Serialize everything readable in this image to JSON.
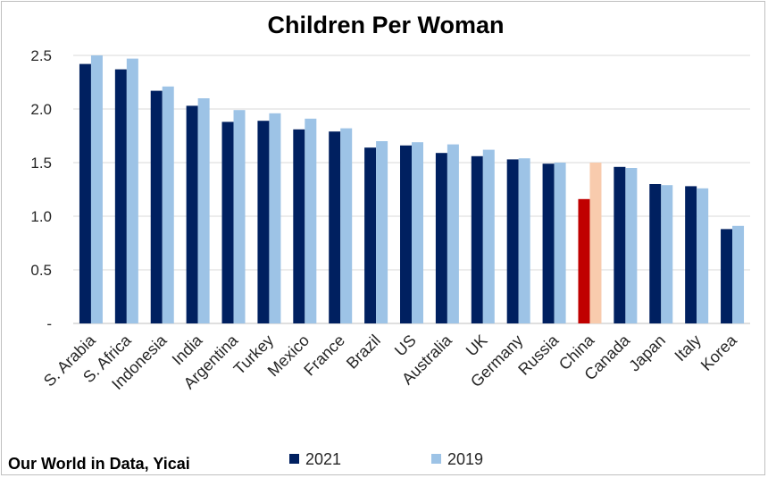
{
  "chart_data": {
    "type": "bar",
    "title": "Children Per Woman",
    "source": "Our World in Data, Yicai",
    "categories": [
      "S. Arabia",
      "S. Africa",
      "Indonesia",
      "India",
      "Argentina",
      "Turkey",
      "Mexico",
      "France",
      "Brazil",
      "US",
      "Australia",
      "UK",
      "Germany",
      "Russia",
      "China",
      "Canada",
      "Japan",
      "Italy",
      "Korea"
    ],
    "series": [
      {
        "name": "2021",
        "color": "#002060",
        "values": [
          2.42,
          2.37,
          2.17,
          2.03,
          1.88,
          1.89,
          1.81,
          1.79,
          1.64,
          1.66,
          1.59,
          1.56,
          1.53,
          1.49,
          1.16,
          1.46,
          1.3,
          1.28,
          0.88
        ]
      },
      {
        "name": "2019",
        "color": "#9dc3e6",
        "values": [
          2.5,
          2.47,
          2.21,
          2.1,
          1.99,
          1.96,
          1.91,
          1.82,
          1.7,
          1.69,
          1.67,
          1.62,
          1.54,
          1.5,
          1.5,
          1.45,
          1.29,
          1.26,
          0.91
        ]
      }
    ],
    "highlight": {
      "category": "China",
      "colors": {
        "2021": "#c00000",
        "2019": "#f8cbad"
      }
    },
    "yticks": [
      "-",
      "0.5",
      "1.0",
      "1.5",
      "2.0",
      "2.5"
    ],
    "ylim": [
      0,
      2.5
    ],
    "xlabel": "",
    "ylabel": "",
    "grid": true,
    "legend_position": "bottom"
  }
}
